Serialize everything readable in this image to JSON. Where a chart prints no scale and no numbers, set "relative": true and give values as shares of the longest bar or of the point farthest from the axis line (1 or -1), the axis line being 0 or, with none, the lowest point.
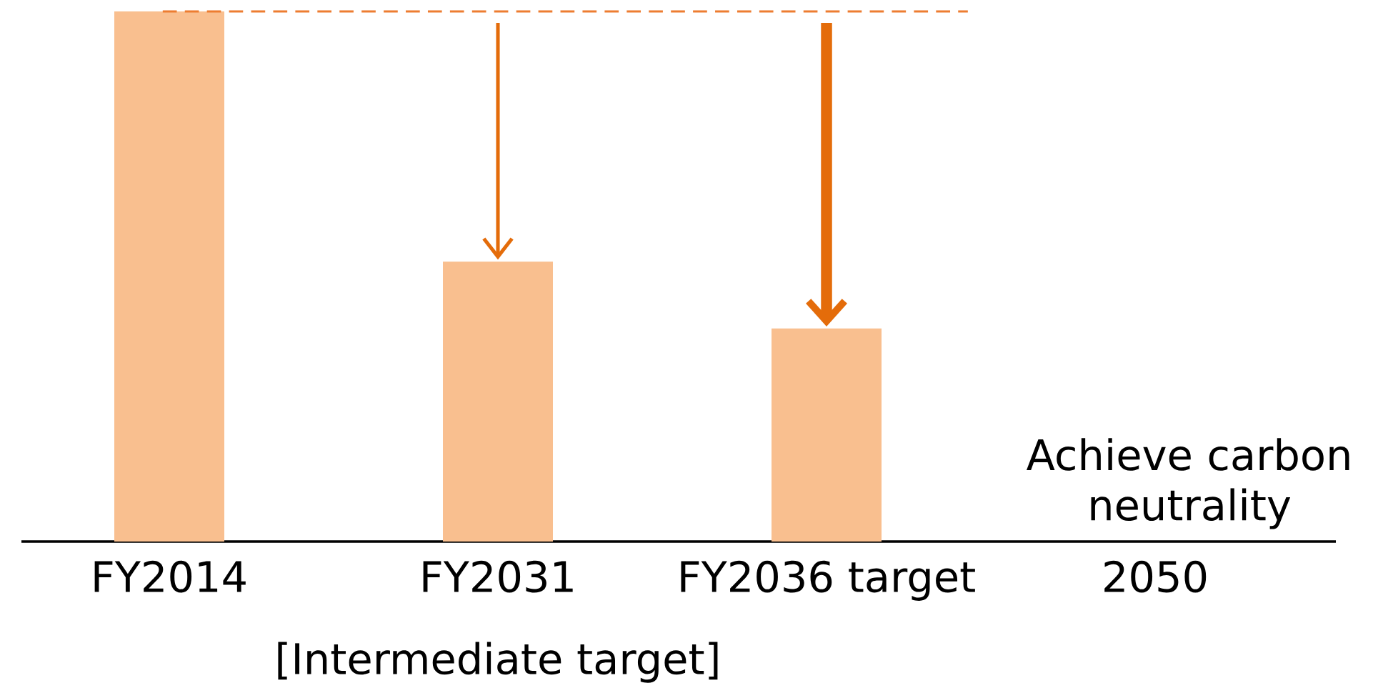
{
  "chart_data": {
    "type": "bar",
    "categories": [
      "FY2014",
      "FY2031",
      "FY2036 target",
      "2050"
    ],
    "values": [
      1,
      0.528,
      0.402,
      null
    ],
    "color": "#f9bf8f",
    "relative": true,
    "ref_lines": [
      {
        "axis": "y",
        "value": 1,
        "color": "#ed7d31",
        "line_style": "dashed"
      }
    ],
    "annotations": [
      "[Intermediate target]",
      "Achieve carbon neutrality"
    ]
  }
}
